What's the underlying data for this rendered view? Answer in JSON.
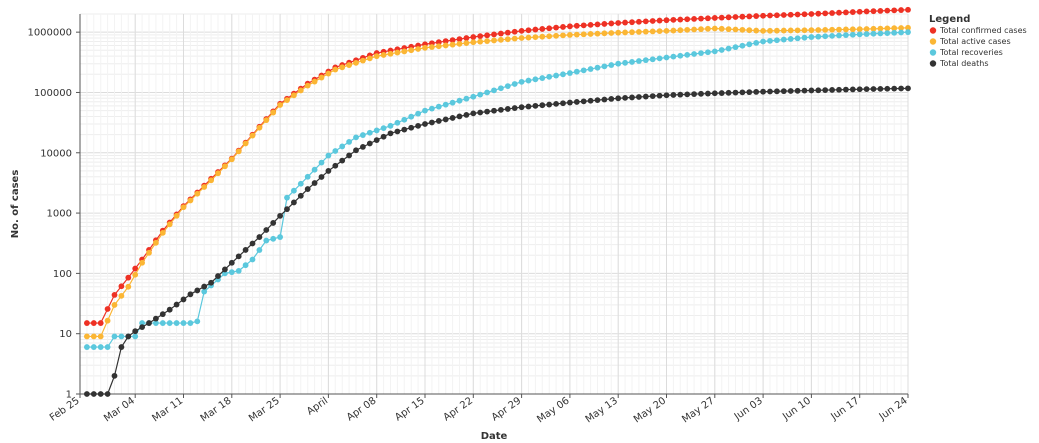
{
  "chart_data": {
    "type": "line",
    "xlabel": "Date",
    "ylabel": "No. of cases",
    "yscale": "log",
    "ylim": [
      1,
      2000000
    ],
    "xlim": [
      "2020-02-25",
      "2020-06-24"
    ],
    "x_ticks": [
      "2020-02-25",
      "2020-03-04",
      "2020-03-11",
      "2020-03-18",
      "2020-03-25",
      "2020-04-01",
      "2020-04-08",
      "2020-04-15",
      "2020-04-22",
      "2020-04-29",
      "2020-05-06",
      "2020-05-13",
      "2020-05-20",
      "2020-05-27",
      "2020-06-03",
      "2020-06-10",
      "2020-06-17",
      "2020-06-24"
    ],
    "x_tick_labels": [
      "Feb 25",
      "Mar 04",
      "Mar 11",
      "Mar 18",
      "Mar 25",
      "April",
      "Apr 08",
      "Apr 15",
      "Apr 22",
      "Apr 29",
      "May 06",
      "May 13",
      "May 20",
      "May 27",
      "Jun 03",
      "Jun 10",
      "Jun 17",
      "Jun 24"
    ],
    "y_ticks": [
      1,
      10,
      100,
      1000,
      10000,
      100000,
      1000000
    ],
    "y_tick_labels": [
      "1",
      "10",
      "100",
      "1000",
      "10000",
      "100000",
      "1000000"
    ],
    "grid": true,
    "legend": {
      "title": "Legend",
      "position": "top-right"
    },
    "series": [
      {
        "name": "Total confirmed cases",
        "color": "#ee3124",
        "points": [
          [
            "2020-02-26",
            15
          ],
          [
            "2020-02-28",
            15
          ],
          [
            "2020-03-01",
            44
          ],
          [
            "2020-03-03",
            85
          ],
          [
            "2020-03-05",
            170
          ],
          [
            "2020-03-08",
            510
          ],
          [
            "2020-03-11",
            1300
          ],
          [
            "2020-03-15",
            3700
          ],
          [
            "2020-03-18",
            8000
          ],
          [
            "2020-03-22",
            27000
          ],
          [
            "2020-03-25",
            65000
          ],
          [
            "2020-03-29",
            140000
          ],
          [
            "2020-04-02",
            260000
          ],
          [
            "2020-04-08",
            450000
          ],
          [
            "2020-04-15",
            630000
          ],
          [
            "2020-04-22",
            830000
          ],
          [
            "2020-04-29",
            1050000
          ],
          [
            "2020-05-06",
            1250000
          ],
          [
            "2020-05-13",
            1420000
          ],
          [
            "2020-05-20",
            1580000
          ],
          [
            "2020-05-27",
            1720000
          ],
          [
            "2020-06-03",
            1870000
          ],
          [
            "2020-06-10",
            2000000
          ],
          [
            "2020-06-17",
            2180000
          ],
          [
            "2020-06-24",
            2350000
          ]
        ]
      },
      {
        "name": "Total active cases",
        "color": "#fbb634",
        "points": [
          [
            "2020-02-26",
            9
          ],
          [
            "2020-02-28",
            9
          ],
          [
            "2020-03-01",
            30
          ],
          [
            "2020-03-03",
            60
          ],
          [
            "2020-03-05",
            150
          ],
          [
            "2020-03-08",
            470
          ],
          [
            "2020-03-11",
            1250
          ],
          [
            "2020-03-15",
            3500
          ],
          [
            "2020-03-18",
            7800
          ],
          [
            "2020-03-22",
            26000
          ],
          [
            "2020-03-25",
            62000
          ],
          [
            "2020-03-29",
            130000
          ],
          [
            "2020-04-02",
            240000
          ],
          [
            "2020-04-08",
            400000
          ],
          [
            "2020-04-15",
            550000
          ],
          [
            "2020-04-22",
            680000
          ],
          [
            "2020-04-29",
            800000
          ],
          [
            "2020-05-06",
            900000
          ],
          [
            "2020-05-13",
            980000
          ],
          [
            "2020-05-20",
            1050000
          ],
          [
            "2020-05-27",
            1150000
          ],
          [
            "2020-06-03",
            1050000
          ],
          [
            "2020-06-10",
            1080000
          ],
          [
            "2020-06-17",
            1120000
          ],
          [
            "2020-06-24",
            1180000
          ]
        ]
      },
      {
        "name": "Total recoveries",
        "color": "#5bc8dd",
        "points": [
          [
            "2020-02-26",
            6
          ],
          [
            "2020-02-29",
            6
          ],
          [
            "2020-03-01",
            9
          ],
          [
            "2020-03-04",
            9
          ],
          [
            "2020-03-05",
            15
          ],
          [
            "2020-03-12",
            15
          ],
          [
            "2020-03-13",
            16
          ],
          [
            "2020-03-14",
            50
          ],
          [
            "2020-03-17",
            100
          ],
          [
            "2020-03-19",
            110
          ],
          [
            "2020-03-21",
            170
          ],
          [
            "2020-03-23",
            350
          ],
          [
            "2020-03-25",
            400
          ],
          [
            "2020-03-26",
            1800
          ],
          [
            "2020-03-29",
            4000
          ],
          [
            "2020-04-01",
            9000
          ],
          [
            "2020-04-05",
            18000
          ],
          [
            "2020-04-10",
            28000
          ],
          [
            "2020-04-15",
            50000
          ],
          [
            "2020-04-22",
            85000
          ],
          [
            "2020-04-29",
            150000
          ],
          [
            "2020-05-06",
            210000
          ],
          [
            "2020-05-13",
            300000
          ],
          [
            "2020-05-20",
            380000
          ],
          [
            "2020-05-27",
            480000
          ],
          [
            "2020-06-03",
            700000
          ],
          [
            "2020-06-10",
            830000
          ],
          [
            "2020-06-17",
            920000
          ],
          [
            "2020-06-24",
            1000000
          ]
        ]
      },
      {
        "name": "Total deaths",
        "color": "#333333",
        "points": [
          [
            "2020-02-26",
            1
          ],
          [
            "2020-02-29",
            1
          ],
          [
            "2020-03-01",
            2
          ],
          [
            "2020-03-02",
            6
          ],
          [
            "2020-03-03",
            9
          ],
          [
            "2020-03-04",
            11
          ],
          [
            "2020-03-06",
            15
          ],
          [
            "2020-03-09",
            25
          ],
          [
            "2020-03-12",
            45
          ],
          [
            "2020-03-15",
            70
          ],
          [
            "2020-03-18",
            150
          ],
          [
            "2020-03-22",
            400
          ],
          [
            "2020-03-25",
            900
          ],
          [
            "2020-03-29",
            2500
          ],
          [
            "2020-04-01",
            5000
          ],
          [
            "2020-04-05",
            11000
          ],
          [
            "2020-04-10",
            21000
          ],
          [
            "2020-04-15",
            30000
          ],
          [
            "2020-04-22",
            45000
          ],
          [
            "2020-04-29",
            57000
          ],
          [
            "2020-05-06",
            68000
          ],
          [
            "2020-05-13",
            80000
          ],
          [
            "2020-05-20",
            90000
          ],
          [
            "2020-05-27",
            97000
          ],
          [
            "2020-06-03",
            103000
          ],
          [
            "2020-06-10",
            108000
          ],
          [
            "2020-06-17",
            113000
          ],
          [
            "2020-06-24",
            117000
          ]
        ]
      }
    ]
  }
}
